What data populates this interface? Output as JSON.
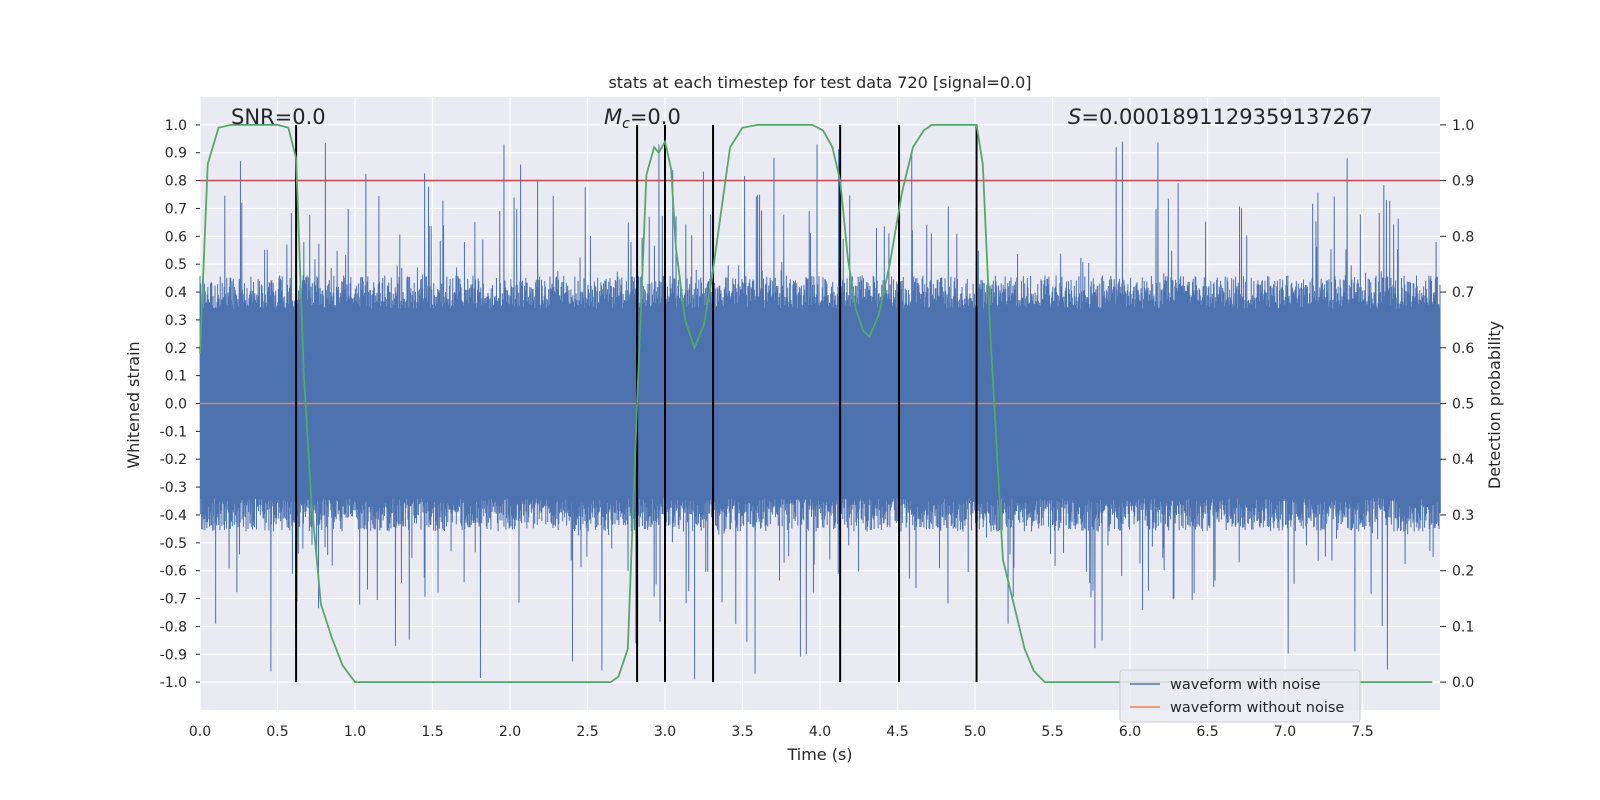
{
  "chart_data": {
    "type": "line",
    "title": "stats at each timestep for test data 720 [signal=0.0]",
    "xlabel": "Time (s)",
    "ylabel_left": "Whitened strain",
    "ylabel_right": "Detection probability",
    "xlim": [
      0.0,
      8.0
    ],
    "ylim_left": [
      -1.1,
      1.1
    ],
    "ylim_right": [
      -0.05,
      1.05
    ],
    "xticks": [
      0.0,
      0.5,
      1.0,
      1.5,
      2.0,
      2.5,
      3.0,
      3.5,
      4.0,
      4.5,
      5.0,
      5.5,
      6.0,
      6.5,
      7.0,
      7.5
    ],
    "xtick_labels": [
      "0.0",
      "0.5",
      "1.0",
      "1.5",
      "2.0",
      "2.5",
      "3.0",
      "3.5",
      "4.0",
      "4.5",
      "5.0",
      "5.5",
      "6.0",
      "6.5",
      "7.0",
      "7.5"
    ],
    "yticks_left": [
      1.0,
      0.9,
      0.8,
      0.7,
      0.6,
      0.5,
      0.4,
      0.3,
      0.2,
      0.1,
      0.0,
      -0.1,
      -0.2,
      -0.3,
      -0.4,
      -0.5,
      -0.6,
      -0.7,
      -0.8,
      -0.9,
      -1.0
    ],
    "ytick_labels_left": [
      "1.0",
      "0.9",
      "0.8",
      "0.7",
      "0.6",
      "0.5",
      "0.4",
      "0.3",
      "0.2",
      "0.1",
      "0.0",
      "-0.1",
      "-0.2",
      "-0.3",
      "-0.4",
      "-0.5",
      "-0.6",
      "-0.7",
      "-0.8",
      "-0.9",
      "-1.0"
    ],
    "yticks_right": [
      1.0,
      0.9,
      0.8,
      0.7,
      0.6,
      0.5,
      0.4,
      0.3,
      0.2,
      0.1,
      0.0
    ],
    "ytick_labels_right": [
      "1.0",
      "0.9",
      "0.8",
      "0.7",
      "0.6",
      "0.5",
      "0.4",
      "0.3",
      "0.2",
      "0.1",
      "0.0"
    ],
    "grid": true,
    "annotations": {
      "snr": "SNR=0.0",
      "mc_symbol": "M",
      "mc_sub": "c",
      "mc_value": "=0.0",
      "s_symbol": "S",
      "s_value": "=0.0001891129359137267"
    },
    "threshold": {
      "value": 0.9,
      "axis": "right",
      "color": "#c44e52"
    },
    "vertical_lines": {
      "x": [
        0.62,
        2.82,
        3.0,
        3.31,
        4.13,
        4.51,
        5.01
      ],
      "ymin": -1.0,
      "ymax": 1.0,
      "color": "#000000"
    },
    "series": [
      {
        "name": "waveform with noise",
        "color": "#4c72b0",
        "axis": "left",
        "kind": "noise-band",
        "t_range": [
          0.0,
          8.0
        ],
        "typical_amplitude": 0.4,
        "peak_max": 0.94,
        "peak_min": -0.99,
        "notable_peaks": [
          {
            "x": 0.26,
            "y": 0.87
          },
          {
            "x": 1.96,
            "y": 0.93
          },
          {
            "x": 2.96,
            "y": 0.93
          },
          {
            "x": 3.98,
            "y": 0.93
          },
          {
            "x": 5.91,
            "y": 0.92
          },
          {
            "x": 5.95,
            "y": 0.94
          },
          {
            "x": 7.4,
            "y": 0.88
          },
          {
            "x": 0.1,
            "y": -0.79
          },
          {
            "x": 1.26,
            "y": -0.87
          },
          {
            "x": 3.19,
            "y": -0.99
          },
          {
            "x": 3.58,
            "y": -0.97
          },
          {
            "x": 7.45,
            "y": -0.89
          }
        ]
      },
      {
        "name": "waveform without noise",
        "color": "#dd8452",
        "axis": "left",
        "x": [
          0.0,
          8.0
        ],
        "values": [
          0.0,
          0.0
        ]
      },
      {
        "name": "detection probability",
        "color": "#55a868",
        "axis": "right",
        "x": [
          0.0,
          0.05,
          0.12,
          0.2,
          0.3,
          0.4,
          0.5,
          0.57,
          0.62,
          0.67,
          0.72,
          0.78,
          0.85,
          0.92,
          1.0,
          1.5,
          2.0,
          2.5,
          2.65,
          2.7,
          2.76,
          2.82,
          2.88,
          2.93,
          2.96,
          3.0,
          3.04,
          3.07,
          3.13,
          3.19,
          3.25,
          3.3,
          3.35,
          3.42,
          3.5,
          3.6,
          3.8,
          3.95,
          4.02,
          4.08,
          4.13,
          4.18,
          4.23,
          4.28,
          4.32,
          4.38,
          4.45,
          4.53,
          4.6,
          4.67,
          4.72,
          4.8,
          4.9,
          4.96,
          5.01,
          5.05,
          5.1,
          5.18,
          5.25,
          5.32,
          5.38,
          5.45,
          6.0,
          7.0,
          7.95
        ],
        "values": [
          0.59,
          0.93,
          0.995,
          1.0,
          1.0,
          1.0,
          1.0,
          0.995,
          0.94,
          0.55,
          0.32,
          0.14,
          0.08,
          0.03,
          0.0,
          0.0,
          0.0,
          0.0,
          0.0,
          0.01,
          0.06,
          0.5,
          0.91,
          0.96,
          0.95,
          0.97,
          0.92,
          0.78,
          0.65,
          0.6,
          0.64,
          0.72,
          0.82,
          0.96,
          0.995,
          1.0,
          1.0,
          1.0,
          0.99,
          0.96,
          0.9,
          0.76,
          0.67,
          0.63,
          0.62,
          0.66,
          0.75,
          0.88,
          0.96,
          0.99,
          1.0,
          1.0,
          1.0,
          1.0,
          1.0,
          0.93,
          0.62,
          0.22,
          0.14,
          0.06,
          0.02,
          0.0,
          0.0,
          0.0,
          0.0
        ]
      }
    ],
    "legend": {
      "position": "lower-right",
      "entries": [
        {
          "label": "waveform with noise",
          "color": "#4c72b0"
        },
        {
          "label": "waveform without noise",
          "color": "#dd8452"
        }
      ]
    }
  }
}
